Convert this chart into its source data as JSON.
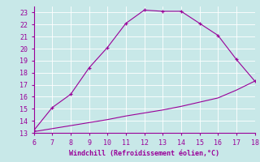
{
  "x_upper": [
    6,
    7,
    8,
    9,
    10,
    11,
    12,
    13,
    14,
    15,
    16,
    17,
    18
  ],
  "y_upper": [
    13.2,
    15.1,
    16.2,
    18.4,
    20.1,
    22.1,
    23.2,
    23.1,
    23.1,
    22.1,
    21.1,
    19.1,
    17.3
  ],
  "x_lower": [
    6,
    7,
    8,
    9,
    10,
    11,
    12,
    13,
    14,
    15,
    16,
    17,
    18
  ],
  "y_lower": [
    13.1,
    13.35,
    13.6,
    13.85,
    14.1,
    14.4,
    14.65,
    14.9,
    15.2,
    15.55,
    15.9,
    16.55,
    17.3
  ],
  "line_color": "#990099",
  "bg_color": "#c8e8e8",
  "grid_color": "#b0d8d8",
  "xlabel": "Windchill (Refroidissement éolien,°C)",
  "xlim": [
    6,
    18
  ],
  "ylim": [
    13,
    23.5
  ],
  "xticks": [
    6,
    7,
    8,
    9,
    10,
    11,
    12,
    13,
    14,
    15,
    16,
    17,
    18
  ],
  "yticks": [
    13,
    14,
    15,
    16,
    17,
    18,
    19,
    20,
    21,
    22,
    23
  ],
  "xlabel_color": "#990099",
  "tick_color": "#990099",
  "marker": "+"
}
